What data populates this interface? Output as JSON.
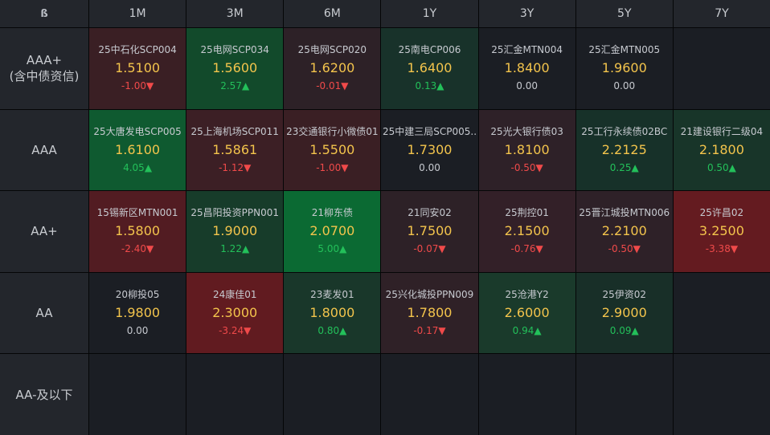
{
  "logo_icon": "b-logo-icon",
  "columns": [
    "1M",
    "3M",
    "6M",
    "1Y",
    "3Y",
    "5Y",
    "7Y"
  ],
  "rows": [
    {
      "label": "AAA+",
      "sublabel": "(含中债资信)",
      "cells": [
        {
          "name": "25中石化SCP004",
          "value": "1.5100",
          "change": "-1.00▼",
          "dir": "down",
          "bg": "#3a1f24"
        },
        {
          "name": "25电网SCP034",
          "value": "1.5600",
          "change": "2.57▲",
          "dir": "up",
          "bg": "#124a2b"
        },
        {
          "name": "25电网SCP020",
          "value": "1.6200",
          "change": "-0.01▼",
          "dir": "down",
          "bg": "#2d2127"
        },
        {
          "name": "25南电CP006",
          "value": "1.6400",
          "change": "0.13▲",
          "dir": "up",
          "bg": "#18322a"
        },
        {
          "name": "25汇金MTN004",
          "value": "1.8400",
          "change": "0.00",
          "dir": "flat",
          "bg": "#1b1e24"
        },
        {
          "name": "25汇金MTN005",
          "value": "1.9600",
          "change": "0.00",
          "dir": "flat",
          "bg": "#1b1e24"
        },
        null
      ]
    },
    {
      "label": "AAA",
      "sublabel": "",
      "cells": [
        {
          "name": "25大唐发电SCP005",
          "value": "1.6100",
          "change": "4.05▲",
          "dir": "up",
          "bg": "#0f5a30"
        },
        {
          "name": "25上海机场SCP011",
          "value": "1.5861",
          "change": "-1.12▼",
          "dir": "down",
          "bg": "#3c1f25"
        },
        {
          "name": "23交通银行小微债01",
          "value": "1.5500",
          "change": "-1.00▼",
          "dir": "down",
          "bg": "#3a1f24"
        },
        {
          "name": "25中建三局SCP005..",
          "value": "1.7300",
          "change": "0.00",
          "dir": "flat",
          "bg": "#1b1e24"
        },
        {
          "name": "25光大银行债03",
          "value": "1.8100",
          "change": "-0.50▼",
          "dir": "down",
          "bg": "#2e2128"
        },
        {
          "name": "25工行永续债02BC",
          "value": "2.2125",
          "change": "0.25▲",
          "dir": "up",
          "bg": "#173129"
        },
        {
          "name": "21建设银行二级04",
          "value": "2.1800",
          "change": "0.50▲",
          "dir": "up",
          "bg": "#183529"
        }
      ]
    },
    {
      "label": "AA+",
      "sublabel": "",
      "cells": [
        {
          "name": "15锡新区MTN001",
          "value": "1.5800",
          "change": "-2.40▼",
          "dir": "down",
          "bg": "#521c22"
        },
        {
          "name": "25昌阳投资PPN001",
          "value": "1.9000",
          "change": "1.22▲",
          "dir": "up",
          "bg": "#173c2a"
        },
        {
          "name": "21柳东债",
          "value": "2.0700",
          "change": "5.00▲",
          "dir": "up",
          "bg": "#0b6a33"
        },
        {
          "name": "21同安02",
          "value": "1.7500",
          "change": "-0.07▼",
          "dir": "down",
          "bg": "#2d2127"
        },
        {
          "name": "25荆控01",
          "value": "2.1500",
          "change": "-0.76▼",
          "dir": "down",
          "bg": "#332028"
        },
        {
          "name": "25晋江城投MTN006",
          "value": "2.2100",
          "change": "-0.50▼",
          "dir": "down",
          "bg": "#2e2128"
        },
        {
          "name": "25许昌02",
          "value": "3.2500",
          "change": "-3.38▼",
          "dir": "down",
          "bg": "#641b20"
        }
      ]
    },
    {
      "label": "AA",
      "sublabel": "",
      "cells": [
        {
          "name": "20柳投05",
          "value": "1.9800",
          "change": "0.00",
          "dir": "flat",
          "bg": "#1b1e24"
        },
        {
          "name": "24康佳01",
          "value": "2.3000",
          "change": "-3.24▼",
          "dir": "down",
          "bg": "#611b20"
        },
        {
          "name": "23麦发01",
          "value": "1.8000",
          "change": "0.80▲",
          "dir": "up",
          "bg": "#19372a"
        },
        {
          "name": "25兴化城投PPN009",
          "value": "1.7800",
          "change": "-0.17▼",
          "dir": "down",
          "bg": "#2f2127"
        },
        {
          "name": "25沧港Y2",
          "value": "2.6000",
          "change": "0.94▲",
          "dir": "up",
          "bg": "#1a3a2b"
        },
        {
          "name": "25伊资02",
          "value": "2.9000",
          "change": "0.09▲",
          "dir": "up",
          "bg": "#182f28"
        },
        null
      ]
    },
    {
      "label": "AA-及以下",
      "sublabel": "",
      "cells": [
        null,
        null,
        null,
        null,
        null,
        null,
        null
      ]
    }
  ]
}
